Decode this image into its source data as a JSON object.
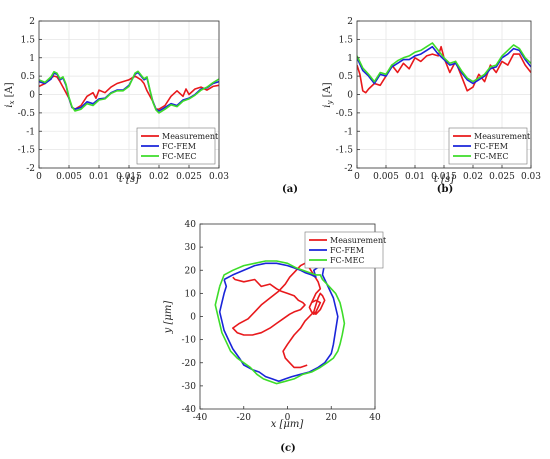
{
  "colors": {
    "measurement": "#e8191c",
    "fem": "#1a25d9",
    "mec": "#3ddc29",
    "grid": "#e6e6e6",
    "axis": "#333333"
  },
  "chart_data": [
    {
      "type": "line",
      "caption": "(a)",
      "xlabel": "t [s]",
      "ylabel": "i_x [A]",
      "ylabel_main": "i",
      "ylabel_sub": "x",
      "ylabel_unit": "[A]",
      "xlim": [
        0,
        0.03
      ],
      "ylim": [
        -2,
        2
      ],
      "xticks": [
        0,
        0.005,
        0.01,
        0.015,
        0.02,
        0.025,
        0.03
      ],
      "xticklabels": [
        "0",
        "0.005",
        "0.01",
        "0.015",
        "0.02",
        "0.025",
        "0.03"
      ],
      "yticks": [
        -2,
        -1.5,
        -1,
        -0.5,
        0,
        0.5,
        1,
        1.5,
        2
      ],
      "yticklabels": [
        "-2",
        "-1.5",
        "-1",
        "-0.5",
        "0",
        "0.5",
        "1",
        "1.5",
        "2"
      ],
      "grid": true,
      "legend": "bottom-right",
      "series": [
        {
          "name": "Measurement",
          "color": "#e8191c",
          "x": [
            0,
            0.001,
            0.002,
            0.0025,
            0.003,
            0.0035,
            0.004,
            0.005,
            0.0055,
            0.006,
            0.007,
            0.008,
            0.009,
            0.0095,
            0.01,
            0.011,
            0.012,
            0.013,
            0.014,
            0.015,
            0.016,
            0.017,
            0.0175,
            0.018,
            0.019,
            0.0195,
            0.02,
            0.021,
            0.022,
            0.023,
            0.024,
            0.0245,
            0.025,
            0.026,
            0.027,
            0.028,
            0.029,
            0.03
          ],
          "values": [
            0.22,
            0.3,
            0.45,
            0.5,
            0.48,
            0.35,
            0.2,
            -0.1,
            -0.35,
            -0.4,
            -0.3,
            -0.05,
            0.05,
            -0.1,
            0.12,
            0.05,
            0.2,
            0.3,
            0.35,
            0.4,
            0.5,
            0.4,
            0.3,
            0.1,
            -0.2,
            -0.4,
            -0.4,
            -0.3,
            -0.05,
            0.1,
            -0.05,
            0.15,
            0.0,
            0.15,
            0.2,
            0.12,
            0.22,
            0.25
          ]
        },
        {
          "name": "FC-FEM",
          "color": "#1a25d9",
          "x": [
            0,
            0.001,
            0.002,
            0.0025,
            0.003,
            0.0035,
            0.004,
            0.0045,
            0.005,
            0.0055,
            0.006,
            0.007,
            0.008,
            0.009,
            0.01,
            0.011,
            0.012,
            0.013,
            0.014,
            0.015,
            0.016,
            0.0165,
            0.017,
            0.0175,
            0.018,
            0.0185,
            0.019,
            0.0195,
            0.02,
            0.021,
            0.022,
            0.023,
            0.024,
            0.025,
            0.026,
            0.027,
            0.028,
            0.029,
            0.03
          ],
          "values": [
            0.35,
            0.3,
            0.42,
            0.58,
            0.55,
            0.4,
            0.45,
            0.25,
            -0.1,
            -0.35,
            -0.4,
            -0.35,
            -0.2,
            -0.25,
            -0.12,
            -0.1,
            0.05,
            0.12,
            0.12,
            0.25,
            0.55,
            0.6,
            0.5,
            0.4,
            0.45,
            0.1,
            -0.2,
            -0.4,
            -0.45,
            -0.35,
            -0.25,
            -0.3,
            -0.15,
            -0.1,
            0.0,
            0.15,
            0.18,
            0.3,
            0.35
          ]
        },
        {
          "name": "FC-MEC",
          "color": "#3ddc29",
          "x": [
            0,
            0.001,
            0.002,
            0.0025,
            0.003,
            0.0035,
            0.004,
            0.0045,
            0.005,
            0.0055,
            0.006,
            0.007,
            0.008,
            0.009,
            0.01,
            0.011,
            0.012,
            0.013,
            0.014,
            0.015,
            0.016,
            0.0165,
            0.017,
            0.0175,
            0.018,
            0.0185,
            0.019,
            0.0195,
            0.02,
            0.021,
            0.022,
            0.023,
            0.024,
            0.025,
            0.026,
            0.027,
            0.028,
            0.029,
            0.03
          ],
          "values": [
            0.4,
            0.33,
            0.48,
            0.62,
            0.58,
            0.43,
            0.48,
            0.28,
            -0.08,
            -0.33,
            -0.45,
            -0.4,
            -0.25,
            -0.3,
            -0.15,
            -0.12,
            0.03,
            0.1,
            0.1,
            0.22,
            0.58,
            0.63,
            0.53,
            0.43,
            0.48,
            0.12,
            -0.22,
            -0.42,
            -0.5,
            -0.4,
            -0.28,
            -0.33,
            -0.18,
            -0.12,
            -0.02,
            0.12,
            0.2,
            0.32,
            0.42
          ]
        }
      ]
    },
    {
      "type": "line",
      "caption": "(b)",
      "xlabel": "t [s]",
      "ylabel": "i_y [A]",
      "ylabel_main": "i",
      "ylabel_sub": "y",
      "ylabel_unit": "[A]",
      "xlim": [
        0,
        0.03
      ],
      "ylim": [
        -2,
        2
      ],
      "xticks": [
        0,
        0.005,
        0.01,
        0.015,
        0.02,
        0.025,
        0.03
      ],
      "xticklabels": [
        "0",
        "0.005",
        "0.01",
        "0.015",
        "0.02",
        "0.025",
        "0.03"
      ],
      "yticks": [
        -2,
        -1.5,
        -1,
        -0.5,
        0,
        0.5,
        1,
        1.5,
        2
      ],
      "yticklabels": [
        "-2",
        "-1.5",
        "-1",
        "-0.5",
        "0",
        "0.5",
        "1",
        "1.5",
        "2"
      ],
      "grid": true,
      "legend": "bottom-right",
      "series": [
        {
          "name": "Measurement",
          "color": "#e8191c",
          "x": [
            0,
            0.0005,
            0.001,
            0.0015,
            0.002,
            0.003,
            0.004,
            0.005,
            0.006,
            0.007,
            0.008,
            0.009,
            0.01,
            0.011,
            0.012,
            0.013,
            0.014,
            0.0145,
            0.015,
            0.016,
            0.017,
            0.018,
            0.019,
            0.02,
            0.021,
            0.022,
            0.023,
            0.024,
            0.025,
            0.026,
            0.027,
            0.028,
            0.029,
            0.03
          ],
          "values": [
            0.8,
            0.55,
            0.1,
            0.05,
            0.15,
            0.3,
            0.25,
            0.5,
            0.8,
            0.6,
            0.85,
            0.7,
            1.0,
            0.9,
            1.05,
            1.1,
            1.05,
            1.3,
            1.0,
            0.6,
            0.9,
            0.5,
            0.1,
            0.2,
            0.55,
            0.35,
            0.8,
            0.6,
            0.9,
            0.8,
            1.1,
            1.1,
            0.8,
            0.6
          ]
        },
        {
          "name": "FC-FEM",
          "color": "#1a25d9",
          "x": [
            0,
            0.001,
            0.002,
            0.003,
            0.004,
            0.005,
            0.006,
            0.007,
            0.008,
            0.009,
            0.01,
            0.011,
            0.012,
            0.013,
            0.014,
            0.015,
            0.016,
            0.017,
            0.018,
            0.019,
            0.02,
            0.021,
            0.022,
            0.023,
            0.024,
            0.025,
            0.026,
            0.027,
            0.028,
            0.029,
            0.03
          ],
          "values": [
            1.0,
            0.65,
            0.5,
            0.3,
            0.55,
            0.5,
            0.75,
            0.85,
            0.95,
            0.95,
            1.05,
            1.1,
            1.2,
            1.3,
            1.1,
            0.95,
            0.8,
            0.85,
            0.6,
            0.4,
            0.3,
            0.4,
            0.5,
            0.7,
            0.75,
            1.0,
            1.1,
            1.25,
            1.2,
            0.95,
            0.75
          ]
        },
        {
          "name": "FC-MEC",
          "color": "#3ddc29",
          "x": [
            0,
            0.001,
            0.002,
            0.003,
            0.004,
            0.005,
            0.006,
            0.007,
            0.008,
            0.009,
            0.01,
            0.011,
            0.012,
            0.013,
            0.014,
            0.015,
            0.016,
            0.017,
            0.018,
            0.019,
            0.02,
            0.021,
            0.022,
            0.023,
            0.024,
            0.025,
            0.026,
            0.027,
            0.028,
            0.029,
            0.03
          ],
          "values": [
            1.05,
            0.72,
            0.55,
            0.35,
            0.6,
            0.55,
            0.8,
            0.92,
            1.0,
            1.05,
            1.15,
            1.2,
            1.3,
            1.4,
            1.2,
            1.0,
            0.85,
            0.9,
            0.65,
            0.45,
            0.35,
            0.45,
            0.55,
            0.75,
            0.8,
            1.05,
            1.2,
            1.35,
            1.25,
            1.0,
            0.85
          ]
        }
      ]
    },
    {
      "type": "line",
      "caption": "(c)",
      "xlabel": "x [μm]",
      "ylabel": "y [μm]",
      "xlim": [
        -40,
        40
      ],
      "ylim": [
        -40,
        40
      ],
      "xticks": [
        -40,
        -20,
        0,
        20,
        40
      ],
      "xticklabels": [
        "-40",
        "-20",
        "0",
        "20",
        "40"
      ],
      "yticks": [
        -40,
        -30,
        -20,
        -10,
        0,
        10,
        20,
        30,
        40
      ],
      "yticklabels": [
        "-40",
        "-30",
        "-20",
        "-10",
        "0",
        "10",
        "20",
        "30",
        "40"
      ],
      "grid": false,
      "legend": "top-right",
      "series": [
        {
          "name": "Measurement",
          "color": "#e8191c",
          "x": [
            -25,
            -24,
            -20,
            -15,
            -12,
            -8,
            -5,
            -3,
            0,
            3,
            5,
            7,
            8,
            6,
            3,
            1,
            -2,
            -5,
            -8,
            -12,
            -16,
            -20,
            -23,
            -25,
            -22,
            -18,
            -15,
            -12,
            -8,
            -4,
            -1,
            1,
            3,
            6,
            8,
            9,
            10,
            12,
            14,
            15,
            13,
            12,
            11,
            10,
            11,
            12,
            13,
            14,
            15,
            13,
            11,
            10,
            11,
            13,
            15,
            16,
            17,
            16,
            15,
            14,
            13,
            12,
            10,
            8,
            6,
            3,
            0,
            -2,
            -1,
            1,
            3,
            6,
            9
          ],
          "values": [
            17,
            16,
            15,
            16,
            13,
            14,
            12,
            11,
            10,
            9,
            7,
            6,
            5,
            3,
            2,
            1,
            -1,
            -3,
            -5,
            -7,
            -8,
            -8,
            -7,
            -5,
            -3,
            -1,
            2,
            5,
            8,
            11,
            14,
            17,
            19,
            22,
            23,
            22,
            21,
            18,
            15,
            12,
            10,
            8,
            6,
            4,
            2,
            1,
            2,
            4,
            6,
            7,
            6,
            4,
            2,
            1,
            3,
            5,
            7,
            9,
            10,
            8,
            5,
            2,
            0,
            -2,
            -5,
            -8,
            -12,
            -15,
            -18,
            -20,
            -22,
            -22,
            -21
          ]
        },
        {
          "name": "FC-FEM",
          "color": "#1a25d9",
          "x": [
            -29,
            -25,
            -20,
            -15,
            -10,
            -5,
            0,
            3,
            6,
            8,
            11,
            13,
            12,
            15,
            17,
            16,
            18,
            21,
            23,
            22,
            21,
            20,
            17,
            14,
            10,
            6,
            2,
            -1,
            -4,
            -7,
            -10,
            -13,
            -16,
            -20,
            -22,
            -25,
            -27,
            -29,
            -30,
            -31,
            -30,
            -29,
            -28,
            -29
          ],
          "values": [
            16,
            18,
            20,
            22,
            23,
            23,
            22,
            21,
            20,
            19,
            18,
            17,
            20,
            22,
            23,
            18,
            14,
            8,
            0,
            -6,
            -12,
            -16,
            -20,
            -22,
            -24,
            -25,
            -26,
            -27,
            -28,
            -27,
            -26,
            -24,
            -23,
            -21,
            -18,
            -14,
            -10,
            -6,
            -2,
            2,
            6,
            10,
            13,
            16
          ]
        },
        {
          "name": "FC-MEC",
          "color": "#3ddc29",
          "x": [
            -31,
            -29,
            -25,
            -20,
            -15,
            -10,
            -5,
            0,
            4,
            7,
            10,
            13,
            15,
            16,
            18,
            20,
            22,
            24,
            25,
            26,
            25,
            24,
            23,
            21,
            18,
            15,
            11,
            7,
            3,
            -1,
            -5,
            -8,
            -11,
            -14,
            -17,
            -20,
            -23,
            -26,
            -28,
            -30,
            -31,
            -32,
            -33,
            -32,
            -31
          ],
          "values": [
            13,
            18,
            20,
            22,
            23,
            24,
            24,
            23,
            21,
            20,
            19,
            18,
            18,
            16,
            14,
            12,
            10,
            6,
            2,
            -3,
            -8,
            -12,
            -15,
            -18,
            -20,
            -22,
            -24,
            -25,
            -27,
            -28,
            -29,
            -28,
            -27,
            -25,
            -22,
            -20,
            -18,
            -15,
            -11,
            -7,
            -3,
            1,
            5,
            9,
            13
          ]
        }
      ]
    }
  ]
}
